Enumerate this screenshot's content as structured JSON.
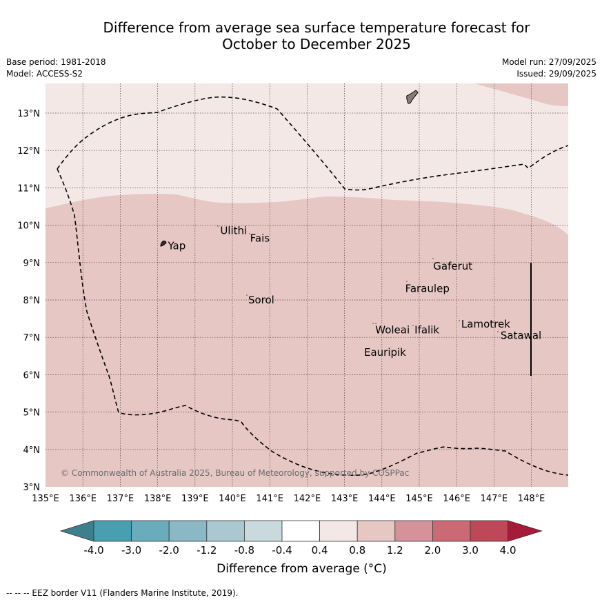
{
  "title": {
    "line1": "Difference from average sea surface temperature forecast for",
    "line2": "October to December 2025"
  },
  "meta": {
    "base_period": "Base period: 1981-2018",
    "model": "Model: ACCESS-S2",
    "model_run": "Model run: 27/09/2025",
    "issued": "Issued: 29/09/2025"
  },
  "map": {
    "lon_range": [
      135,
      149
    ],
    "lat_range": [
      3,
      13.8
    ],
    "x_ticks": [
      "135°E",
      "136°E",
      "137°E",
      "138°E",
      "139°E",
      "140°E",
      "141°E",
      "142°E",
      "143°E",
      "144°E",
      "145°E",
      "146°E",
      "147°E",
      "148°E"
    ],
    "y_ticks": [
      "3°N",
      "4°N",
      "5°N",
      "6°N",
      "7°N",
      "8°N",
      "9°N",
      "10°N",
      "11°N",
      "12°N",
      "13°N"
    ],
    "anomaly_zones": [
      {
        "range": "0.4 to 0.8",
        "color": "#f4e8e7"
      },
      {
        "range": "0.8 to 1.2",
        "color": "#e6c7c3"
      }
    ],
    "places": [
      {
        "name": "Yap",
        "lon": 138.2,
        "lat": 9.45
      },
      {
        "name": "Ulithi",
        "lon": 139.6,
        "lat": 9.85
      },
      {
        "name": "Fais",
        "lon": 140.4,
        "lat": 9.65
      },
      {
        "name": "Gaferut",
        "lon": 145.3,
        "lat": 8.9
      },
      {
        "name": "Faraulep",
        "lon": 144.55,
        "lat": 8.3
      },
      {
        "name": "Sorol",
        "lon": 140.35,
        "lat": 8.0
      },
      {
        "name": "Woleai",
        "lon": 143.75,
        "lat": 7.2
      },
      {
        "name": "Ifalik",
        "lon": 144.8,
        "lat": 7.2
      },
      {
        "name": "Lamotrek",
        "lon": 146.05,
        "lat": 7.35
      },
      {
        "name": "Satawal",
        "lon": 147.1,
        "lat": 7.05
      },
      {
        "name": "Eauripik",
        "lon": 143.45,
        "lat": 6.6
      }
    ],
    "copyright": "© Commonwealth of Australia 2025, Bureau of Meteorology, supported by COSPPac"
  },
  "colorbar": {
    "labels": [
      "-4.0",
      "-3.0",
      "-2.0",
      "-1.2",
      "-0.8",
      "-0.4",
      "0.4",
      "0.8",
      "1.2",
      "2.0",
      "3.0",
      "4.0"
    ],
    "colors": [
      "#3d7f8d",
      "#479fb1",
      "#6aacbb",
      "#8ab8c4",
      "#a9c8cf",
      "#c8dade",
      "#ffffff",
      "#f4e8e7",
      "#e6c7c3",
      "#d5929a",
      "#cb6a74",
      "#bf4858",
      "#a51c3a"
    ],
    "title": "Difference from average (°C)"
  },
  "eez_note": "--  --  -- EEZ border V11 (Flanders Marine Institute, 2019)."
}
